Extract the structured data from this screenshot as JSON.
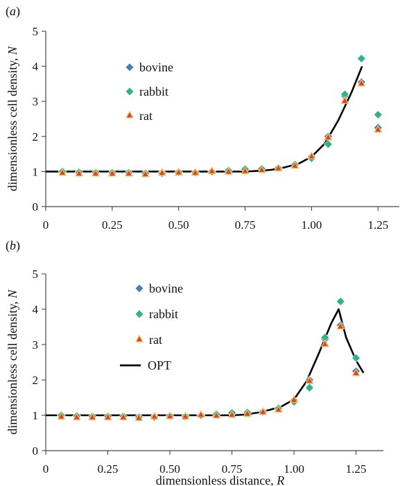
{
  "colors": {
    "bovine": "#4a7fb5",
    "rabbit": "#2fb38a",
    "rat_fill": "#e2402a",
    "rat_edge": "#f0c060",
    "curve": "#000000"
  },
  "chart_data": [
    {
      "type": "scatter",
      "panel_label": "(a)",
      "ylabel": "dimensionless cell density, N",
      "xlabel": "",
      "xlim": [
        0,
        1.33
      ],
      "ylim": [
        0,
        5
      ],
      "x_ticks": [
        "0",
        "0.25",
        "0.50",
        "0.75",
        "1.00",
        "1.25"
      ],
      "y_ticks": [
        "0",
        "1",
        "2",
        "3",
        "4",
        "5"
      ],
      "legend": [
        "bovine",
        "rabbit",
        "rat"
      ],
      "legend_position": "upper-left",
      "x": [
        0.0625,
        0.125,
        0.1875,
        0.25,
        0.3125,
        0.375,
        0.4375,
        0.5,
        0.5625,
        0.625,
        0.6875,
        0.75,
        0.8125,
        0.875,
        0.9375,
        1.0,
        1.0625,
        1.125,
        1.1875,
        1.25
      ],
      "series": [
        {
          "name": "bovine",
          "marker": "diamond",
          "values": [
            1.0,
            0.98,
            0.97,
            0.97,
            0.97,
            0.96,
            0.97,
            0.98,
            0.98,
            1.01,
            1.02,
            1.05,
            1.07,
            1.1,
            1.2,
            1.42,
            2.0,
            3.15,
            3.55,
            2.25
          ]
        },
        {
          "name": "rabbit",
          "marker": "diamond",
          "values": [
            1.0,
            0.98,
            0.97,
            0.97,
            0.97,
            0.95,
            0.95,
            0.98,
            0.97,
            1.0,
            1.03,
            1.07,
            1.08,
            1.1,
            1.2,
            1.38,
            1.78,
            3.2,
            4.22,
            2.62
          ]
        },
        {
          "name": "rat",
          "marker": "triangle",
          "values": [
            0.97,
            0.95,
            0.95,
            0.95,
            0.95,
            0.93,
            0.97,
            0.98,
            0.97,
            1.02,
            1.0,
            1.02,
            1.05,
            1.1,
            1.17,
            1.44,
            1.98,
            3.02,
            3.52,
            2.2
          ]
        }
      ],
      "curve": {
        "x": [
          0,
          0.1,
          0.2,
          0.3,
          0.4,
          0.5,
          0.6,
          0.7,
          0.75,
          0.8,
          0.85,
          0.9,
          0.95,
          1.0,
          1.05,
          1.1,
          1.15,
          1.19
        ],
        "y": [
          1.0,
          1.0,
          1.0,
          1.0,
          1.0,
          1.0,
          1.0,
          1.0,
          1.0,
          1.02,
          1.05,
          1.12,
          1.22,
          1.42,
          1.8,
          2.45,
          3.25,
          4.0
        ]
      }
    },
    {
      "type": "scatter",
      "panel_label": "(b)",
      "ylabel": "dimensionless cell density, N",
      "xlabel": "dimensionless distance, R",
      "xlim": [
        0,
        1.36
      ],
      "ylim": [
        0,
        5
      ],
      "x_ticks": [
        "0",
        "0.25",
        "0.50",
        "0.75",
        "1.00",
        "1.25"
      ],
      "y_ticks": [
        "0",
        "1",
        "2",
        "3",
        "4",
        "5"
      ],
      "legend": [
        "bovine",
        "rabbit",
        "rat",
        "OPT"
      ],
      "legend_position": "upper-left",
      "x": [
        0.0625,
        0.125,
        0.1875,
        0.25,
        0.3125,
        0.375,
        0.4375,
        0.5,
        0.5625,
        0.625,
        0.6875,
        0.75,
        0.8125,
        0.875,
        0.9375,
        1.0,
        1.0625,
        1.125,
        1.1875,
        1.25
      ],
      "series": [
        {
          "name": "bovine",
          "marker": "diamond",
          "values": [
            1.0,
            0.98,
            0.97,
            0.97,
            0.97,
            0.96,
            0.97,
            0.98,
            0.98,
            1.01,
            1.02,
            1.05,
            1.07,
            1.1,
            1.2,
            1.42,
            2.0,
            3.15,
            3.55,
            2.25
          ]
        },
        {
          "name": "rabbit",
          "marker": "diamond",
          "values": [
            1.0,
            0.98,
            0.97,
            0.97,
            0.97,
            0.95,
            0.95,
            0.98,
            0.97,
            1.0,
            1.03,
            1.07,
            1.08,
            1.1,
            1.2,
            1.38,
            1.78,
            3.2,
            4.22,
            2.62
          ]
        },
        {
          "name": "rat",
          "marker": "triangle",
          "values": [
            0.97,
            0.95,
            0.95,
            0.95,
            0.95,
            0.93,
            0.97,
            0.98,
            0.97,
            1.02,
            1.0,
            1.02,
            1.05,
            1.1,
            1.17,
            1.44,
            1.98,
            3.02,
            3.52,
            2.2
          ]
        }
      ],
      "curve": {
        "name": "OPT",
        "x": [
          0,
          0.1,
          0.2,
          0.3,
          0.4,
          0.5,
          0.6,
          0.7,
          0.75,
          0.8,
          0.85,
          0.9,
          0.95,
          1.0,
          1.05,
          1.1,
          1.15,
          1.18,
          1.21,
          1.25,
          1.28
        ],
        "y": [
          1.0,
          1.0,
          1.0,
          1.0,
          1.0,
          1.0,
          1.0,
          1.0,
          1.0,
          1.02,
          1.07,
          1.15,
          1.25,
          1.45,
          1.95,
          2.75,
          3.6,
          4.0,
          3.2,
          2.55,
          2.2
        ]
      }
    }
  ]
}
